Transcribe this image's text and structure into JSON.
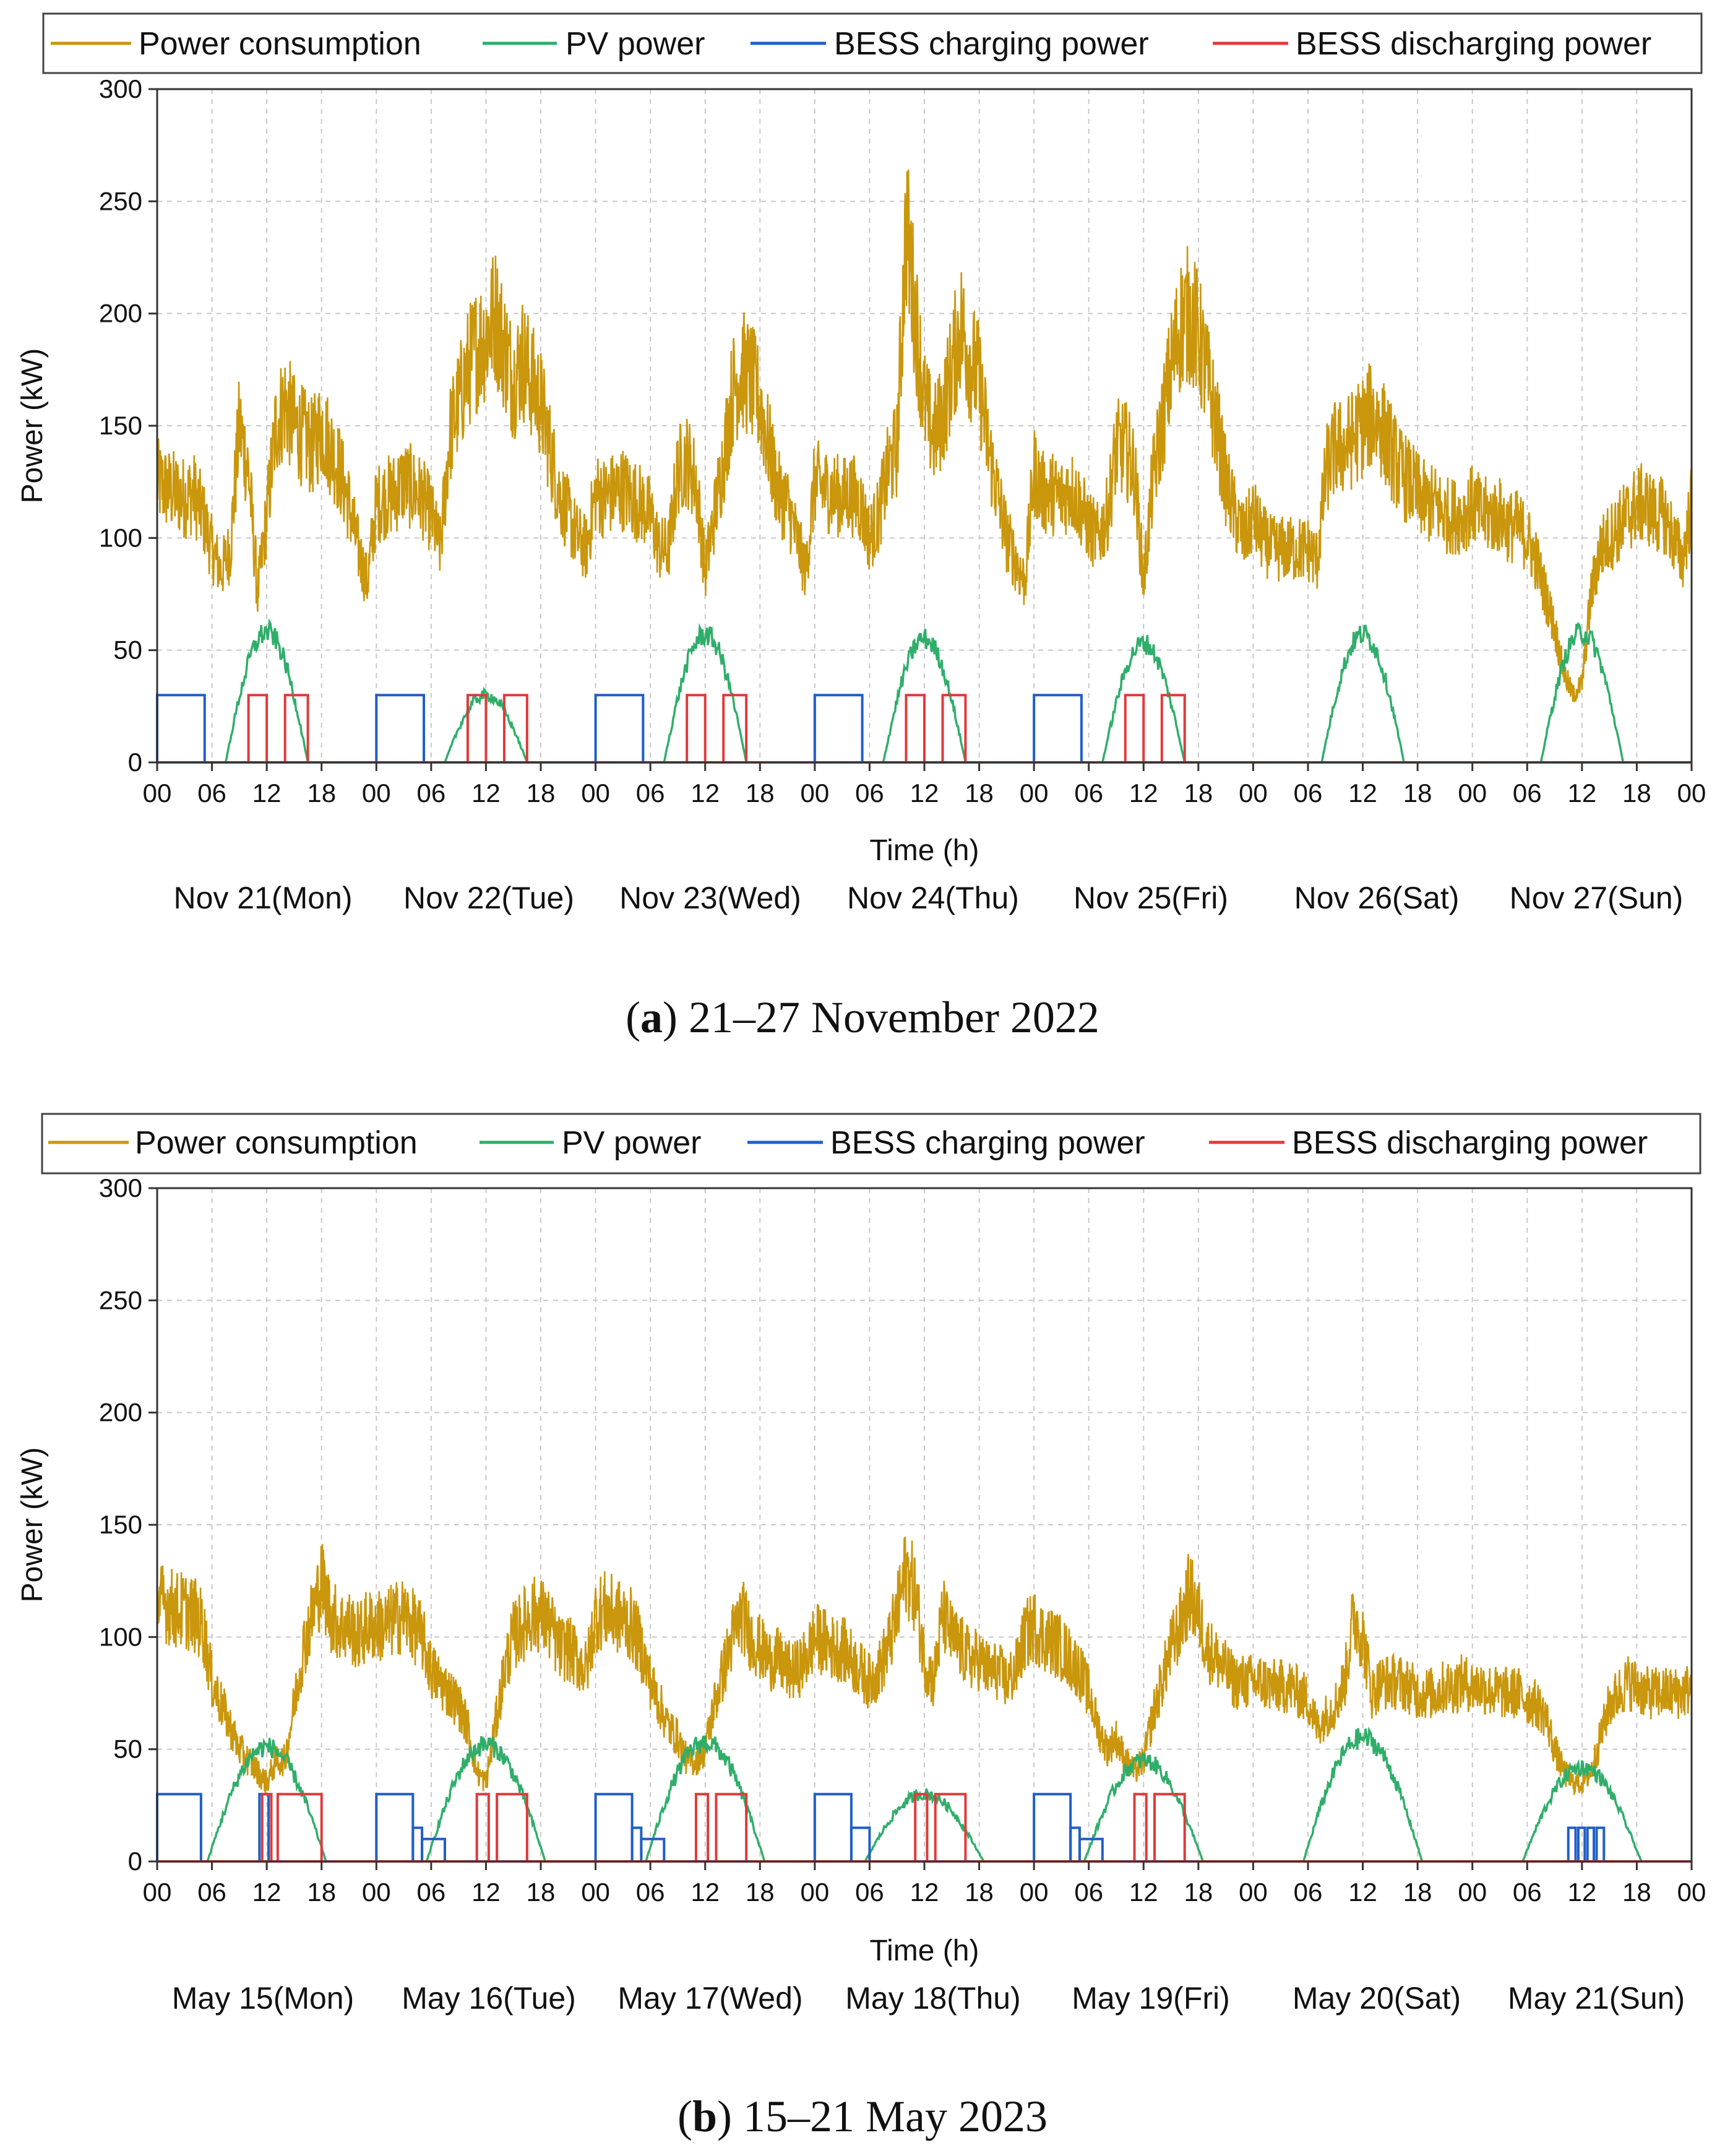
{
  "colors": {
    "power_consumption": "#c9960c",
    "pv_power": "#2fae6a",
    "bess_charging": "#1f5fc8",
    "bess_discharging": "#e03a3a",
    "grid": "#c8c8c8",
    "axis": "#333333"
  },
  "chart_data": [
    {
      "type": "line",
      "panel_letter": "a",
      "caption_text": ") 21–27 November 2022",
      "caption_open": "(",
      "ylabel": "Power (kW)",
      "xlabel": "Time (h)",
      "ylim": [
        0,
        300
      ],
      "xlim_hours": [
        0,
        168
      ],
      "yticks": [
        "0",
        "50",
        "100",
        "150",
        "200",
        "250",
        "300"
      ],
      "xticks": [
        "00",
        "06",
        "12",
        "18",
        "00",
        "06",
        "12",
        "18",
        "00",
        "06",
        "12",
        "18",
        "00",
        "06",
        "12",
        "18",
        "00",
        "06",
        "12",
        "18",
        "00",
        "06",
        "12",
        "18",
        "00",
        "06",
        "12",
        "18",
        "00"
      ],
      "days": [
        "Nov 21(Mon)",
        "Nov 22(Tue)",
        "Nov 23(Wed)",
        "Nov 24(Thu)",
        "Nov 25(Fri)",
        "Nov 26(Sat)",
        "Nov 27(Sun)"
      ],
      "legend": [
        "Power consumption",
        "PV power",
        "BESS charging power",
        "BESS discharging power"
      ],
      "series": [
        {
          "name": "Power consumption",
          "daily_profile_kW": [
            [
              125,
              122,
              120,
              118,
              120,
              110,
              95,
              85,
              95,
              150,
              130,
              75,
              110,
              150,
              160,
              150,
              145,
              140,
              150,
              140,
              130,
              115,
              95,
              80
            ],
            [
              115,
              118,
              120,
              125,
              122,
              118,
              110,
              95,
              145,
              160,
              175,
              185,
              190,
              200,
              185,
              170,
              180,
              170,
              160,
              140,
              120,
              110,
              100,
              95
            ],
            [
              120,
              118,
              120,
              122,
              118,
              115,
              110,
              95,
              95,
              130,
              135,
              125,
              85,
              110,
              135,
              165,
              175,
              170,
              160,
              140,
              120,
              115,
              100,
              85
            ],
            [
              125,
              122,
              120,
              118,
              120,
              115,
              100,
              110,
              130,
              140,
              240,
              200,
              160,
              145,
              155,
              175,
              195,
              180,
              170,
              140,
              120,
              100,
              90,
              80
            ],
            [
              130,
              120,
              120,
              118,
              122,
              115,
              105,
              100,
              110,
              140,
              140,
              130,
              80,
              125,
              150,
              175,
              195,
              200,
              190,
              170,
              150,
              125,
              110,
              100
            ],
            [
              110,
              100,
              95,
              95,
              95,
              95,
              95,
              90,
              130,
              140,
              140,
              145,
              150,
              155,
              150,
              140,
              130,
              125,
              120,
              115,
              115,
              110,
              110,
              110
            ],
            [
              115,
              110,
              110,
              110,
              105,
              105,
              100,
              90,
              75,
              60,
              40,
              30,
              35,
              75,
              95,
              100,
              105,
              110,
              115,
              115,
              110,
              110,
              100,
              90
            ]
          ]
        },
        {
          "name": "PV power",
          "daily_peak_kW": [
            58,
            30,
            57,
            55,
            53,
            57,
            58
          ],
          "pv_window_hours": [
            7.5,
            16.5
          ]
        },
        {
          "name": "BESS charging power",
          "pulses": [
            {
              "day": 0,
              "start_h": 0,
              "end_h": 5.2,
              "level": 30
            },
            {
              "day": 1,
              "start_h": 0,
              "end_h": 5.2,
              "level": 30
            },
            {
              "day": 2,
              "start_h": 0,
              "end_h": 5.2,
              "level": 30
            },
            {
              "day": 3,
              "start_h": 0,
              "end_h": 5.2,
              "level": 30
            },
            {
              "day": 4,
              "start_h": 0,
              "end_h": 5.2,
              "level": 30
            }
          ]
        },
        {
          "name": "BESS discharging power",
          "pulses": [
            {
              "day": 0,
              "start_h": 10,
              "end_h": 12,
              "level": 30
            },
            {
              "day": 0,
              "start_h": 14,
              "end_h": 16.5,
              "level": 30
            },
            {
              "day": 1,
              "start_h": 10,
              "end_h": 12,
              "level": 30
            },
            {
              "day": 1,
              "start_h": 14,
              "end_h": 16.5,
              "level": 30
            },
            {
              "day": 2,
              "start_h": 10,
              "end_h": 12,
              "level": 30
            },
            {
              "day": 2,
              "start_h": 14,
              "end_h": 16.5,
              "level": 30
            },
            {
              "day": 3,
              "start_h": 10,
              "end_h": 12,
              "level": 30
            },
            {
              "day": 3,
              "start_h": 14,
              "end_h": 16.5,
              "level": 30
            },
            {
              "day": 4,
              "start_h": 10,
              "end_h": 12,
              "level": 30
            },
            {
              "day": 4,
              "start_h": 14,
              "end_h": 16.5,
              "level": 30
            }
          ]
        }
      ]
    },
    {
      "type": "line",
      "panel_letter": "b",
      "caption_text": ") 15–21 May 2023",
      "caption_open": "(",
      "ylabel": "Power (kW)",
      "xlabel": "Time (h)",
      "ylim": [
        0,
        300
      ],
      "xlim_hours": [
        0,
        168
      ],
      "yticks": [
        "0",
        "50",
        "100",
        "150",
        "200",
        "250",
        "300"
      ],
      "xticks": [
        "00",
        "06",
        "12",
        "18",
        "00",
        "06",
        "12",
        "18",
        "00",
        "06",
        "12",
        "18",
        "00",
        "06",
        "12",
        "18",
        "00",
        "06",
        "12",
        "18",
        "00",
        "06",
        "12",
        "18",
        "00",
        "06",
        "12",
        "18",
        "00"
      ],
      "days": [
        "May 15(Mon)",
        "May 16(Tue)",
        "May 17(Wed)",
        "May 18(Thu)",
        "May 19(Fri)",
        "May 20(Sat)",
        "May 21(Sun)"
      ],
      "legend": [
        "Power consumption",
        "PV power",
        "BESS charging power",
        "BESS discharging power"
      ],
      "series": [
        {
          "name": "Power consumption",
          "daily_profile_kW": [
            [
              115,
              115,
              112,
              112,
              110,
              105,
              80,
              70,
              60,
              50,
              45,
              40,
              35,
              45,
              45,
              70,
              95,
              110,
              125,
              110,
              105,
              105,
              100,
              105
            ],
            [
              105,
              105,
              108,
              110,
              105,
              100,
              85,
              80,
              75,
              70,
              60,
              40,
              35,
              60,
              85,
              100,
              105,
              110,
              110,
              105,
              95,
              95,
              90,
              85
            ],
            [
              110,
              112,
              110,
              108,
              105,
              95,
              80,
              70,
              60,
              55,
              45,
              45,
              50,
              70,
              85,
              100,
              110,
              100,
              95,
              90,
              90,
              85,
              85,
              90
            ],
            [
              100,
              98,
              95,
              95,
              90,
              85,
              80,
              85,
              95,
              110,
              130,
              120,
              90,
              80,
              110,
              100,
              95,
              90,
              90,
              85,
              85,
              80,
              85,
              100
            ],
            [
              105,
              100,
              98,
              95,
              90,
              85,
              75,
              60,
              50,
              55,
              45,
              40,
              45,
              65,
              80,
              95,
              105,
              120,
              110,
              95,
              90,
              85,
              80,
              80
            ],
            [
              80,
              80,
              78,
              78,
              78,
              75,
              72,
              60,
              65,
              70,
              80,
              110,
              100,
              75,
              80,
              80,
              80,
              78,
              75,
              75,
              75,
              78,
              78,
              80
            ],
            [
              78,
              78,
              76,
              75,
              75,
              75,
              72,
              70,
              65,
              50,
              40,
              35,
              35,
              40,
              55,
              70,
              75,
              80,
              78,
              75,
              75,
              75,
              75,
              75
            ]
          ]
        },
        {
          "name": "PV power",
          "daily_peak_kW": [
            51,
            52,
            53,
            30,
            45,
            55,
            42
          ],
          "pv_window_hours": [
            5.5,
            18.5
          ]
        },
        {
          "name": "BESS charging power",
          "pulses": [
            {
              "day": 0,
              "start_h": 0,
              "end_h": 4.8,
              "level": 30
            },
            {
              "day": 1,
              "start_h": 0,
              "end_h": 4.0,
              "level": 30
            },
            {
              "day": 1,
              "start_h": 4.0,
              "end_h": 5.0,
              "level": 15
            },
            {
              "day": 1,
              "start_h": 5.0,
              "end_h": 7.5,
              "level": 10
            },
            {
              "day": 2,
              "start_h": 0,
              "end_h": 4.0,
              "level": 30
            },
            {
              "day": 2,
              "start_h": 4.0,
              "end_h": 5.0,
              "level": 15
            },
            {
              "day": 2,
              "start_h": 5.0,
              "end_h": 7.5,
              "level": 10
            },
            {
              "day": 3,
              "start_h": 0,
              "end_h": 4.0,
              "level": 30
            },
            {
              "day": 3,
              "start_h": 4.0,
              "end_h": 6.0,
              "level": 15
            },
            {
              "day": 4,
              "start_h": 0,
              "end_h": 4.0,
              "level": 30
            },
            {
              "day": 4,
              "start_h": 4.0,
              "end_h": 5.0,
              "level": 15
            },
            {
              "day": 4,
              "start_h": 5.0,
              "end_h": 7.5,
              "level": 10
            },
            {
              "day": 0,
              "start_h": 11.2,
              "end_h": 12.2,
              "level": 30
            },
            {
              "day": 6,
              "start_h": 10.5,
              "end_h": 11.3,
              "level": 15
            },
            {
              "day": 6,
              "start_h": 11.6,
              "end_h": 12.3,
              "level": 15
            },
            {
              "day": 6,
              "start_h": 12.6,
              "end_h": 13.3,
              "level": 15
            },
            {
              "day": 6,
              "start_h": 13.6,
              "end_h": 14.4,
              "level": 15
            }
          ]
        },
        {
          "name": "BESS discharging power",
          "pulses": [
            {
              "day": 0,
              "start_h": 11.5,
              "end_h": 12.5,
              "level": 30
            },
            {
              "day": 0,
              "start_h": 13.2,
              "end_h": 18.0,
              "level": 30
            },
            {
              "day": 1,
              "start_h": 11,
              "end_h": 12.3,
              "level": 30
            },
            {
              "day": 1,
              "start_h": 13.2,
              "end_h": 16.5,
              "level": 30
            },
            {
              "day": 2,
              "start_h": 11,
              "end_h": 12.3,
              "level": 30
            },
            {
              "day": 2,
              "start_h": 13.2,
              "end_h": 16.5,
              "level": 30
            },
            {
              "day": 3,
              "start_h": 11,
              "end_h": 12.3,
              "level": 30
            },
            {
              "day": 3,
              "start_h": 13.2,
              "end_h": 16.5,
              "level": 30
            },
            {
              "day": 4,
              "start_h": 11,
              "end_h": 12.3,
              "level": 30
            },
            {
              "day": 4,
              "start_h": 13.2,
              "end_h": 16.5,
              "level": 30
            }
          ]
        }
      ]
    }
  ]
}
